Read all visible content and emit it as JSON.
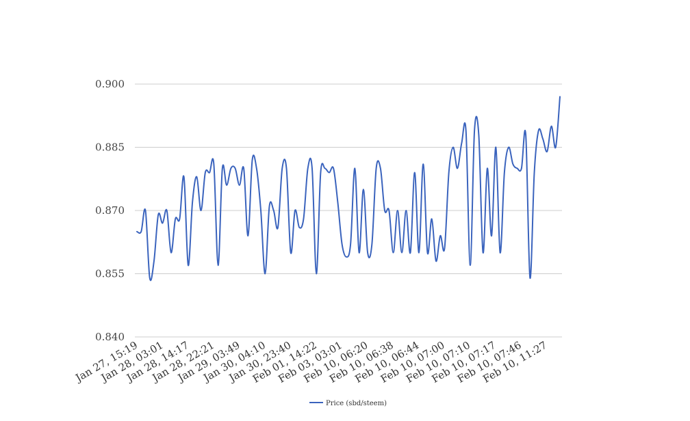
{
  "chart_data": {
    "type": "line",
    "title": "",
    "xlabel": "",
    "ylabel": "",
    "ylim": [
      0.84,
      0.9
    ],
    "yticks": [
      "0.840",
      "0.855",
      "0.870",
      "0.885",
      "0.900"
    ],
    "grid": true,
    "legend_position": "bottom",
    "x_tick_labels": [
      "Jan 27, 15:19",
      "Jan 28, 03:01",
      "Jan 28, 14:17",
      "Jan 28, 22:21",
      "Jan 29, 03:49",
      "Jan 30, 04:10",
      "Jan 30, 23:40",
      "Feb 01, 14:22",
      "Feb 03, 03:01",
      "Feb 10, 06:20",
      "Feb 10, 06:38",
      "Feb 10, 06:44",
      "Feb 10, 07:00",
      "Feb 10, 07:10",
      "Feb 10, 07:17",
      "Feb 10, 07:46",
      "Feb 10, 11:27"
    ],
    "series": [
      {
        "name": "Price (sbd/steem)",
        "color": "#3a63bd",
        "values": [
          0.865,
          0.865,
          0.87,
          0.854,
          0.858,
          0.869,
          0.867,
          0.87,
          0.86,
          0.868,
          0.868,
          0.878,
          0.857,
          0.872,
          0.878,
          0.87,
          0.879,
          0.879,
          0.881,
          0.857,
          0.88,
          0.876,
          0.88,
          0.88,
          0.876,
          0.88,
          0.864,
          0.882,
          0.88,
          0.87,
          0.855,
          0.871,
          0.87,
          0.866,
          0.88,
          0.88,
          0.86,
          0.87,
          0.866,
          0.868,
          0.88,
          0.88,
          0.855,
          0.879,
          0.88,
          0.879,
          0.88,
          0.872,
          0.862,
          0.859,
          0.862,
          0.88,
          0.86,
          0.875,
          0.86,
          0.862,
          0.88,
          0.88,
          0.87,
          0.87,
          0.86,
          0.87,
          0.86,
          0.87,
          0.86,
          0.879,
          0.86,
          0.881,
          0.86,
          0.868,
          0.858,
          0.864,
          0.861,
          0.879,
          0.885,
          0.88,
          0.886,
          0.889,
          0.857,
          0.889,
          0.888,
          0.86,
          0.88,
          0.864,
          0.885,
          0.86,
          0.879,
          0.885,
          0.881,
          0.88,
          0.88,
          0.888,
          0.854,
          0.879,
          0.889,
          0.887,
          0.884,
          0.89,
          0.885,
          0.897
        ]
      }
    ]
  }
}
